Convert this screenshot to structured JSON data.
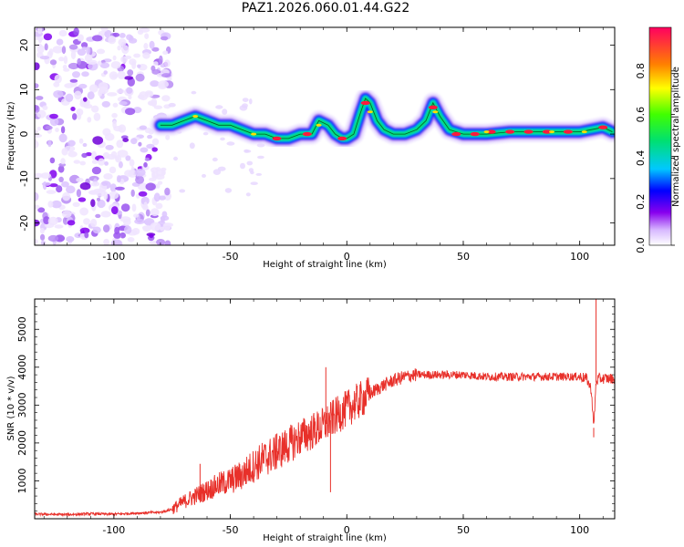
{
  "title": "PAZ1.2026.060.01.44.G22",
  "chart_data": [
    {
      "type": "heatmap",
      "title": "PAZ1.2026.060.01.44.G22",
      "xlabel": "Height of straight line (km)",
      "ylabel": "Frequency (Hz)",
      "xlim": [
        -134,
        115
      ],
      "ylim": [
        -25,
        24
      ],
      "xticks": [
        -100,
        -50,
        0,
        50,
        100
      ],
      "xtick_labels": [
        "-100",
        "-50",
        "0",
        "50",
        "100"
      ],
      "yticks": [
        -20,
        -10,
        0,
        10,
        20
      ],
      "ytick_labels": [
        "-20",
        "-10",
        "0",
        "10",
        "20"
      ],
      "colorbar": {
        "label": "Normalized spectral amplitude",
        "range": [
          0,
          1
        ],
        "ticks": [
          0.0,
          0.2,
          0.4,
          0.6,
          0.8
        ],
        "tick_labels": [
          "0.0",
          "0.2",
          "0.4",
          "0.6",
          "0.8"
        ]
      },
      "ridge": {
        "x": [
          -80,
          -75,
          -70,
          -65,
          -60,
          -55,
          -50,
          -45,
          -40,
          -35,
          -30,
          -25,
          -20,
          -15,
          -12,
          -8,
          -5,
          -2,
          0,
          3,
          6,
          8,
          10,
          13,
          16,
          20,
          25,
          30,
          34,
          37,
          40,
          44,
          50,
          60,
          70,
          80,
          90,
          100,
          105,
          110,
          114
        ],
        "y": [
          2,
          2,
          3,
          4,
          3,
          2,
          2,
          1,
          0,
          0,
          -1,
          -1,
          0,
          0,
          3,
          2,
          0,
          -1,
          -1,
          0,
          5,
          8,
          7,
          3,
          1,
          0,
          0,
          1,
          3,
          7,
          4,
          1,
          0,
          0,
          0.5,
          0.5,
          0.5,
          0.5,
          1,
          1.5,
          0.5
        ]
      },
      "noise_region": {
        "x_from": -134,
        "x_to": -76,
        "y_from": -25,
        "y_to": 24
      },
      "colors": {
        "ridge_core": "#ff1a3c",
        "ridge_mid": "#00e070",
        "ridge_edge": "#0000ff",
        "noise": "#8800ee"
      }
    },
    {
      "type": "line",
      "xlabel": "Height of straight line (km)",
      "ylabel": "SNR (10 * v/v)",
      "xlim": [
        -134,
        115
      ],
      "ylim": [
        0,
        5800
      ],
      "xticks": [
        -100,
        -50,
        0,
        50,
        100
      ],
      "xtick_labels": [
        "-100",
        "-50",
        "0",
        "50",
        "100"
      ],
      "yticks": [
        1000,
        2000,
        3000,
        4000,
        5000
      ],
      "ytick_labels": [
        "1000",
        "2000",
        "3000",
        "4000",
        "5000"
      ],
      "series": [
        {
          "name": "SNR",
          "color": "#e8302a",
          "x": [
            -134,
            -120,
            -110,
            -100,
            -90,
            -80,
            -75,
            -70,
            -65,
            -60,
            -55,
            -50,
            -45,
            -40,
            -35,
            -30,
            -25,
            -20,
            -15,
            -10,
            -5,
            0,
            5,
            10,
            15,
            20,
            25,
            30,
            35,
            40,
            50,
            60,
            70,
            80,
            90,
            100,
            103,
            105,
            106,
            107,
            108,
            110,
            115
          ],
          "y": [
            120,
            110,
            130,
            120,
            150,
            170,
            250,
            450,
            600,
            750,
            900,
            1000,
            1150,
            1400,
            1600,
            1750,
            1950,
            2150,
            2300,
            2450,
            2700,
            2900,
            3100,
            3300,
            3500,
            3650,
            3750,
            3800,
            3800,
            3800,
            3800,
            3750,
            3750,
            3750,
            3750,
            3750,
            3700,
            3400,
            2400,
            3600,
            3700,
            3700,
            3700
          ]
        }
      ],
      "spikes": [
        {
          "x": -63,
          "y": 1450
        },
        {
          "x": -30,
          "y": 2250
        },
        {
          "x": -9,
          "y": 4000
        },
        {
          "x": -7,
          "y": 700
        },
        {
          "x": 106,
          "y": 2150
        },
        {
          "x": 107,
          "y": 5800
        }
      ]
    }
  ]
}
